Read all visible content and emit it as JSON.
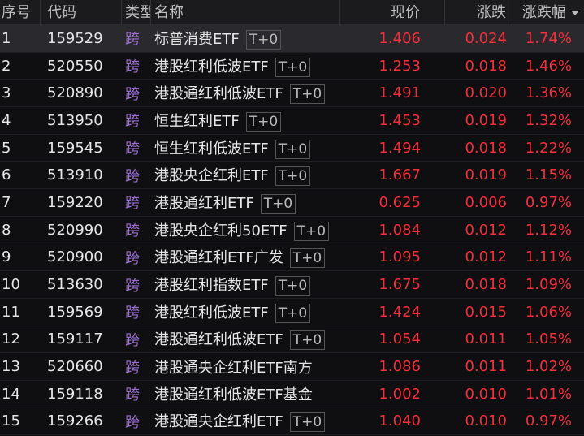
{
  "header": {
    "index": "序号",
    "code": "代码",
    "type": "类型",
    "name": "名称",
    "price": "现价",
    "change": "涨跌",
    "pct": "涨跌幅",
    "sort_icon": "triangle-down"
  },
  "colors": {
    "up": "#f0303c",
    "type": "#9b6fd0"
  },
  "rows": [
    {
      "i": "1",
      "code": "159529",
      "type": "跨",
      "name": "标普消费ETF",
      "badge": "T+0",
      "price": "1.406",
      "change": "0.024",
      "pct": "1.74%"
    },
    {
      "i": "2",
      "code": "520550",
      "type": "跨",
      "name": "港股红利低波ETF",
      "badge": "T+0",
      "price": "1.253",
      "change": "0.018",
      "pct": "1.46%"
    },
    {
      "i": "3",
      "code": "520890",
      "type": "跨",
      "name": "港股通红利低波ETF",
      "badge": "T+0",
      "price": "1.491",
      "change": "0.020",
      "pct": "1.36%"
    },
    {
      "i": "4",
      "code": "513950",
      "type": "跨",
      "name": "恒生红利ETF",
      "badge": "T+0",
      "price": "1.453",
      "change": "0.019",
      "pct": "1.32%"
    },
    {
      "i": "5",
      "code": "159545",
      "type": "跨",
      "name": "恒生红利低波ETF",
      "badge": "T+0",
      "price": "1.494",
      "change": "0.018",
      "pct": "1.22%"
    },
    {
      "i": "6",
      "code": "513910",
      "type": "跨",
      "name": "港股央企红利ETF",
      "badge": "T+0",
      "price": "1.667",
      "change": "0.019",
      "pct": "1.15%"
    },
    {
      "i": "7",
      "code": "159220",
      "type": "跨",
      "name": "港股通红利ETF",
      "badge": "T+0",
      "price": "0.625",
      "change": "0.006",
      "pct": "0.97%"
    },
    {
      "i": "8",
      "code": "520990",
      "type": "跨",
      "name": "港股央企红利50ETF",
      "badge": "T+0",
      "price": "1.084",
      "change": "0.012",
      "pct": "1.12%"
    },
    {
      "i": "9",
      "code": "520900",
      "type": "跨",
      "name": "港股通红利ETF广发",
      "badge": "T+0",
      "price": "1.095",
      "change": "0.012",
      "pct": "1.11%"
    },
    {
      "i": "10",
      "code": "513630",
      "type": "跨",
      "name": "港股红利指数ETF",
      "badge": "T+0",
      "price": "1.675",
      "change": "0.018",
      "pct": "1.09%"
    },
    {
      "i": "11",
      "code": "159569",
      "type": "跨",
      "name": "港股红利低波ETF",
      "badge": "T+0",
      "price": "1.424",
      "change": "0.015",
      "pct": "1.06%"
    },
    {
      "i": "12",
      "code": "159117",
      "type": "跨",
      "name": "港股通红利低波ETF",
      "badge": "T+0",
      "price": "1.054",
      "change": "0.011",
      "pct": "1.05%"
    },
    {
      "i": "13",
      "code": "520660",
      "type": "跨",
      "name": "港股通央企红利ETF南方",
      "badge": "",
      "price": "1.086",
      "change": "0.011",
      "pct": "1.02%"
    },
    {
      "i": "14",
      "code": "159118",
      "type": "跨",
      "name": "港股通红利低波ETF基金",
      "badge": "",
      "price": "1.002",
      "change": "0.010",
      "pct": "1.01%"
    },
    {
      "i": "15",
      "code": "159266",
      "type": "跨",
      "name": "港股通央企红利ETF",
      "badge": "T+0",
      "price": "1.040",
      "change": "0.010",
      "pct": "0.97%"
    }
  ]
}
